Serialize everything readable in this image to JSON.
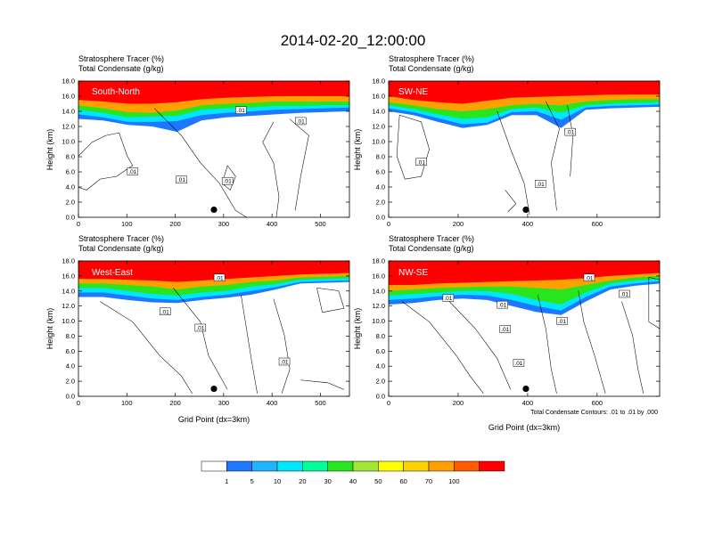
{
  "title": "2014-02-20_12:00:00",
  "colorbar": {
    "labels": [
      "1",
      "5",
      "10",
      "20",
      "30",
      "40",
      "50",
      "60",
      "70",
      "100"
    ],
    "colors": [
      "#ffffff",
      "#1e78ff",
      "#1eb4ff",
      "#00e6ff",
      "#00ff96",
      "#28e61e",
      "#a0e632",
      "#ffff00",
      "#ffd200",
      "#ffa000",
      "#ff5a00",
      "#ff0000"
    ]
  },
  "footnote": "Total Condensate Contours: .01 to .01 by .000",
  "panels": [
    {
      "id": "south-north",
      "name": "South-North",
      "subtitle_line1": "Stratosphere Tracer   (%)",
      "subtitle_line2": "Total Condensate   (g/kg)",
      "ylabel": "Height (km)",
      "xlabel": "",
      "xticks": [
        "0",
        "100",
        "200",
        "300",
        "400",
        "500"
      ],
      "yticks": [
        "0.0",
        "2.0",
        "4.0",
        "6.0",
        "8.0",
        "10.0",
        "12.0",
        "14.0",
        "16.0",
        "18.0"
      ],
      "contour_labels": [
        ".01",
        ".01",
        ".01",
        ".01",
        ".01"
      ],
      "marker_x": 280
    },
    {
      "id": "sw-ne",
      "name": "SW-NE",
      "subtitle_line1": "Stratosphere Tracer   (%)",
      "subtitle_line2": "Total Condensate   (g/kg)",
      "ylabel": "Height (km)",
      "xlabel": "",
      "xticks": [
        "0",
        "200",
        "400",
        "600"
      ],
      "yticks": [
        "0.0",
        "2.0",
        "4.0",
        "6.0",
        "8.0",
        "10.0",
        "12.0",
        "14.0",
        "16.0",
        "18.0"
      ],
      "contour_labels": [
        ".01",
        ".01",
        ".01"
      ],
      "marker_x": 395
    },
    {
      "id": "west-east",
      "name": "West-East",
      "subtitle_line1": "Stratosphere Tracer   (%)",
      "subtitle_line2": "Total Condensate   (g/kg)",
      "ylabel": "Height (km)",
      "xlabel": "Grid Point (dx=3km)",
      "xticks": [
        "0",
        "100",
        "200",
        "300",
        "400",
        "500"
      ],
      "yticks": [
        "0.0",
        "2.0",
        "4.0",
        "6.0",
        "8.0",
        "10.0",
        "12.0",
        "14.0",
        "16.0",
        "18.0"
      ],
      "contour_labels": [
        ".01",
        ".01",
        ".01",
        ".01"
      ],
      "marker_x": 280
    },
    {
      "id": "nw-se",
      "name": "NW-SE",
      "subtitle_line1": "Stratosphere Tracer   (%)",
      "subtitle_line2": "Total Condensate   (g/kg)",
      "ylabel": "Height (km)",
      "xlabel": "Grid Point (dx=3km)",
      "xticks": [
        "0",
        "200",
        "400",
        "600"
      ],
      "yticks": [
        "0.0",
        "2.0",
        "4.0",
        "6.0",
        "8.0",
        "10.0",
        "12.0",
        "14.0",
        "16.0",
        "18.0"
      ],
      "contour_labels": [
        ".01",
        ".01",
        ".01",
        ".01",
        ".01",
        ".01",
        ".01"
      ],
      "marker_x": 395
    }
  ],
  "chart_data": [
    {
      "type": "heatmap",
      "panel": "South-North",
      "field": "Stratosphere Tracer (%)",
      "contour_field": "Total Condensate (g/kg)",
      "contour_level": 0.01,
      "xlim": [
        0,
        560
      ],
      "ylim": [
        0.0,
        18.0
      ],
      "xticks": [
        0,
        100,
        200,
        300,
        400,
        500
      ],
      "yticks": [
        0,
        2,
        4,
        6,
        8,
        10,
        12,
        14,
        16,
        18
      ],
      "tracer_bands": [
        {
          "value": 100,
          "bottom_km": [
            15.5,
            15.3,
            15.0,
            15.0,
            15.2,
            15.6,
            15.8,
            15.9,
            16.0,
            16.0,
            16.0,
            16.0
          ]
        },
        {
          "value": 60,
          "bottom_km": [
            14.8,
            14.4,
            13.9,
            13.8,
            14.1,
            14.8,
            15.0,
            15.1,
            15.3,
            15.3,
            15.3,
            15.3
          ]
        },
        {
          "value": 30,
          "bottom_km": [
            14.2,
            13.8,
            13.2,
            13.3,
            13.4,
            14.2,
            14.4,
            14.5,
            14.7,
            14.7,
            14.8,
            14.8
          ]
        },
        {
          "value": 10,
          "bottom_km": [
            13.6,
            13.2,
            12.6,
            12.6,
            12.7,
            13.5,
            13.8,
            14.0,
            14.2,
            14.3,
            14.4,
            14.5
          ]
        },
        {
          "value": 1,
          "bottom_km": [
            13.0,
            12.8,
            12.2,
            12.0,
            11.3,
            12.8,
            13.2,
            13.4,
            13.6,
            13.8,
            13.9,
            14.0
          ]
        }
      ],
      "marker": {
        "x": 280,
        "y_km": 1.0
      }
    },
    {
      "type": "heatmap",
      "panel": "SW-NE",
      "field": "Stratosphere Tracer (%)",
      "contour_field": "Total Condensate (g/kg)",
      "contour_level": 0.01,
      "xlim": [
        0,
        780
      ],
      "ylim": [
        0.0,
        18.0
      ],
      "xticks": [
        0,
        200,
        400,
        600
      ],
      "yticks": [
        0,
        2,
        4,
        6,
        8,
        10,
        12,
        14,
        16,
        18
      ],
      "tracer_bands": [
        {
          "value": 100,
          "bottom_km": [
            16.0,
            15.5,
            15.2,
            15.0,
            15.4,
            15.8,
            15.9,
            16.0,
            16.1,
            16.2,
            16.2,
            16.2
          ]
        },
        {
          "value": 60,
          "bottom_km": [
            15.2,
            14.8,
            14.3,
            14.0,
            14.3,
            14.8,
            15.0,
            14.8,
            15.3,
            15.5,
            15.6,
            15.6
          ]
        },
        {
          "value": 30,
          "bottom_km": [
            14.8,
            14.3,
            13.6,
            13.0,
            13.2,
            14.3,
            14.5,
            13.8,
            14.8,
            15.0,
            15.1,
            15.2
          ]
        },
        {
          "value": 10,
          "bottom_km": [
            14.4,
            13.9,
            13.1,
            12.3,
            12.5,
            13.9,
            14.0,
            12.9,
            14.5,
            14.7,
            14.8,
            14.9
          ]
        },
        {
          "value": 1,
          "bottom_km": [
            14.0,
            13.5,
            12.6,
            11.8,
            12.2,
            13.5,
            13.5,
            11.8,
            14.2,
            14.4,
            14.5,
            14.6
          ]
        }
      ],
      "marker": {
        "x": 395,
        "y_km": 1.0
      }
    },
    {
      "type": "heatmap",
      "panel": "West-East",
      "field": "Stratosphere Tracer (%)",
      "contour_field": "Total Condensate (g/kg)",
      "contour_level": 0.01,
      "xlim": [
        0,
        560
      ],
      "ylim": [
        0.0,
        18.0
      ],
      "xticks": [
        0,
        100,
        200,
        300,
        400,
        500
      ],
      "yticks": [
        0,
        2,
        4,
        6,
        8,
        10,
        12,
        14,
        16,
        18
      ],
      "tracer_bands": [
        {
          "value": 100,
          "bottom_km": [
            15.6,
            15.6,
            15.5,
            15.4,
            15.2,
            15.4,
            15.6,
            15.8,
            16.0,
            16.2,
            16.3,
            16.4
          ]
        },
        {
          "value": 60,
          "bottom_km": [
            15.0,
            15.0,
            14.8,
            14.6,
            14.2,
            14.6,
            14.8,
            15.2,
            15.4,
            15.8,
            15.9,
            16.0
          ]
        },
        {
          "value": 30,
          "bottom_km": [
            14.4,
            14.4,
            14.0,
            13.6,
            13.4,
            13.8,
            14.0,
            14.6,
            14.9,
            15.5,
            15.6,
            15.7
          ]
        },
        {
          "value": 10,
          "bottom_km": [
            13.8,
            13.8,
            13.4,
            13.0,
            12.8,
            13.2,
            13.5,
            14.0,
            14.5,
            15.2,
            15.3,
            15.4
          ]
        },
        {
          "value": 1,
          "bottom_km": [
            13.2,
            13.2,
            12.8,
            12.5,
            12.4,
            12.8,
            13.1,
            13.5,
            14.2,
            15.0,
            15.1,
            15.2
          ]
        }
      ],
      "marker": {
        "x": 280,
        "y_km": 1.0
      }
    },
    {
      "type": "heatmap",
      "panel": "NW-SE",
      "field": "Stratosphere Tracer (%)",
      "contour_field": "Total Condensate (g/kg)",
      "contour_level": 0.01,
      "xlim": [
        0,
        780
      ],
      "ylim": [
        0.0,
        18.0
      ],
      "xticks": [
        0,
        200,
        400,
        600
      ],
      "yticks": [
        0,
        2,
        4,
        6,
        8,
        10,
        12,
        14,
        16,
        18
      ],
      "tracer_bands": [
        {
          "value": 100,
          "bottom_km": [
            14.8,
            14.8,
            15.0,
            15.1,
            15.2,
            15.3,
            15.4,
            15.5,
            15.7,
            16.0,
            16.2,
            16.4
          ]
        },
        {
          "value": 60,
          "bottom_km": [
            14.0,
            14.2,
            14.4,
            14.5,
            14.6,
            14.6,
            14.4,
            14.2,
            14.8,
            15.4,
            15.8,
            16.0
          ]
        },
        {
          "value": 30,
          "bottom_km": [
            13.4,
            13.6,
            13.8,
            14.0,
            14.0,
            13.6,
            12.8,
            12.2,
            13.8,
            15.0,
            15.4,
            15.6
          ]
        },
        {
          "value": 10,
          "bottom_km": [
            12.8,
            13.0,
            13.3,
            13.5,
            13.4,
            12.8,
            12.0,
            11.4,
            13.2,
            14.6,
            15.0,
            15.3
          ]
        },
        {
          "value": 1,
          "bottom_km": [
            12.2,
            12.4,
            12.8,
            13.0,
            12.8,
            12.0,
            11.2,
            10.8,
            12.6,
            14.2,
            14.7,
            15.0
          ]
        }
      ],
      "marker": {
        "x": 395,
        "y_km": 1.0
      }
    }
  ]
}
